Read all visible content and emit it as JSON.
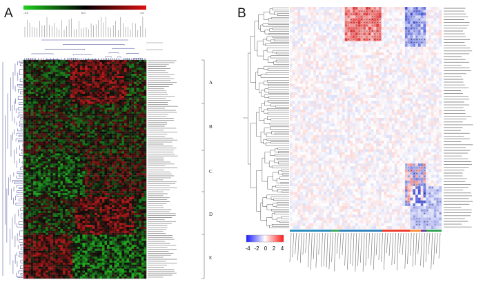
{
  "figure": {
    "panel_a_letter": "A",
    "panel_b_letter": "B"
  },
  "panel_a": {
    "colorbar_ticks": [
      "-1.0",
      "0.0",
      "1.0"
    ],
    "colorbar_colors": [
      "#1fd21f",
      "#000000",
      "#e01010"
    ],
    "cluster_labels": [
      "A",
      "B",
      "C",
      "D",
      "E"
    ],
    "heat_colors": {
      "green": "#22c022",
      "black": "#0a0a0a",
      "red": "#d41a1a"
    },
    "dendrogram_color": "#3a3f8f"
  },
  "panel_b": {
    "colorbar_ticks": [
      "-4",
      "-2",
      "0",
      "2",
      "4"
    ],
    "colorbar_colors": [
      "#1a1aff",
      "#ffffff",
      "#ff1a1a"
    ],
    "heat_colors": {
      "low": "#3c4bd8",
      "mid": "#ffffff",
      "high": "#e41c1c"
    },
    "group_bar_colors": [
      "#2b8cbe",
      "#41ab5d",
      "#3182bd",
      "#ef3b2c",
      "#fd8d3c",
      "#6a3d9a",
      "#31a354"
    ]
  }
}
